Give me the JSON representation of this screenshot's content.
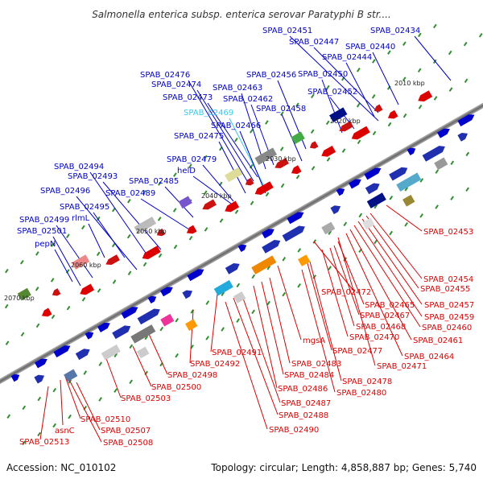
{
  "title": "Salmonella enterica subsp. enterica serovar Paratyphi B str....",
  "footer": {
    "accession": "Accession: NC_010102",
    "summary": "Topology: circular; Length: 4,858,887 bp; Genes: 5,740"
  },
  "colors": {
    "forward": "#0000cc",
    "reverse": "#dd0000",
    "highlight": "#33ccee",
    "backbone": "#888888",
    "tick": "#2f8f2f"
  },
  "kbp_labels": [
    "2010 kbp",
    "2020 kbp",
    "2030 kbp",
    "2040 kbp",
    "2050 kbp",
    "2060 kbp",
    "2070 kbp"
  ],
  "top_labels": [
    {
      "text": "SPAB_02451",
      "hl": false
    },
    {
      "text": "SPAB_02434",
      "hl": false
    },
    {
      "text": "SPAB_02447",
      "hl": false
    },
    {
      "text": "SPAB_02440",
      "hl": false
    },
    {
      "text": "SPAB_02444",
      "hl": false
    },
    {
      "text": "SPAB_02476",
      "hl": false
    },
    {
      "text": "SPAB_02456",
      "hl": false
    },
    {
      "text": "SPAB_02450",
      "hl": false
    },
    {
      "text": "SPAB_02474",
      "hl": false
    },
    {
      "text": "SPAB_02463",
      "hl": false
    },
    {
      "text": "SPAB_02473",
      "hl": false
    },
    {
      "text": "SPAB_02462",
      "hl": false
    },
    {
      "text": "SPAB_02452",
      "hl": false
    },
    {
      "text": "SPAB_02469",
      "hl": true
    },
    {
      "text": "SPAB_02458",
      "hl": false
    },
    {
      "text": "SPAB_02466",
      "hl": false
    },
    {
      "text": "SPAB_02475",
      "hl": false
    },
    {
      "text": "SPAB_02479",
      "hl": false
    },
    {
      "text": "SPAB_02494",
      "hl": false
    },
    {
      "text": "helD",
      "hl": false
    },
    {
      "text": "SPAB_02493",
      "hl": false
    },
    {
      "text": "SPAB_02485",
      "hl": false
    },
    {
      "text": "SPAB_02496",
      "hl": false
    },
    {
      "text": "SPAB_02489",
      "hl": false
    },
    {
      "text": "SPAB_02495",
      "hl": false
    },
    {
      "text": "SPAB_02499",
      "hl": false
    },
    {
      "text": "rlmL",
      "hl": false
    },
    {
      "text": "SPAB_02501",
      "hl": false
    },
    {
      "text": "pepN",
      "hl": false
    }
  ],
  "bottom_labels": [
    "SPAB_02453",
    "SPAB_02454",
    "SPAB_02455",
    "SPAB_02472",
    "SPAB_02457",
    "SPAB_02465",
    "SPAB_02459",
    "SPAB_02467",
    "SPAB_02460",
    "SPAB_02468",
    "SPAB_02470",
    "SPAB_02461",
    "mgsA",
    "SPAB_02477",
    "SPAB_02464",
    "SPAB_02491",
    "SPAB_02471",
    "SPAB_02492",
    "SPAB_02483",
    "SPAB_02498",
    "SPAB_02484",
    "SPAB_02478",
    "SPAB_02500",
    "SPAB_02486",
    "SPAB_02480",
    "SPAB_02503",
    "SPAB_02487",
    "SPAB_02488",
    "SPAB_02510",
    "SPAB_02507",
    "asnC",
    "SPAB_02490",
    "SPAB_02513",
    "SPAB_02508"
  ]
}
